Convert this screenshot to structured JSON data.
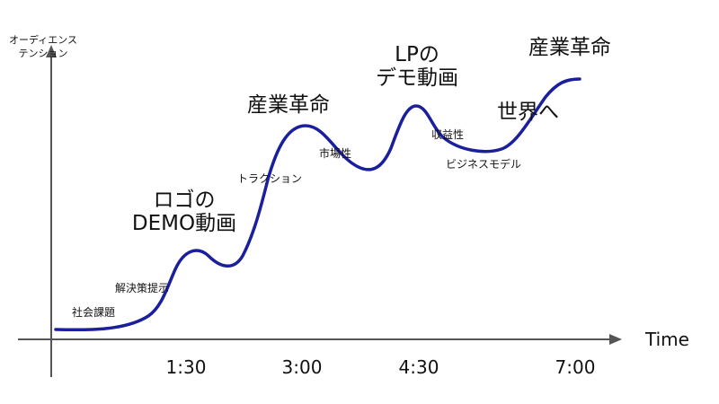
{
  "axes": {
    "y_label_line1": "オーディエンス",
    "y_label_line2": "テンション",
    "x_label": "Time",
    "ticks": [
      "1:30",
      "3:00",
      "4:30",
      "7:00"
    ]
  },
  "annotations": {
    "social_issue": "社会課題",
    "solution": "解決策提示",
    "logo_line1": "ロゴの",
    "logo_line2": "DEMO動画",
    "traction": "トラクション",
    "industry_revolution_1": "産業革命",
    "market": "市場性",
    "lp_line1": "LPの",
    "lp_line2": "デモ動画",
    "revenue": "収益性",
    "business_model": "ビジネスモデル",
    "world": "世界へ",
    "industry_revolution_2": "産業革命"
  },
  "colors": {
    "curve": "#1a1f9e",
    "axis": "#555555",
    "text": "#111111"
  }
}
